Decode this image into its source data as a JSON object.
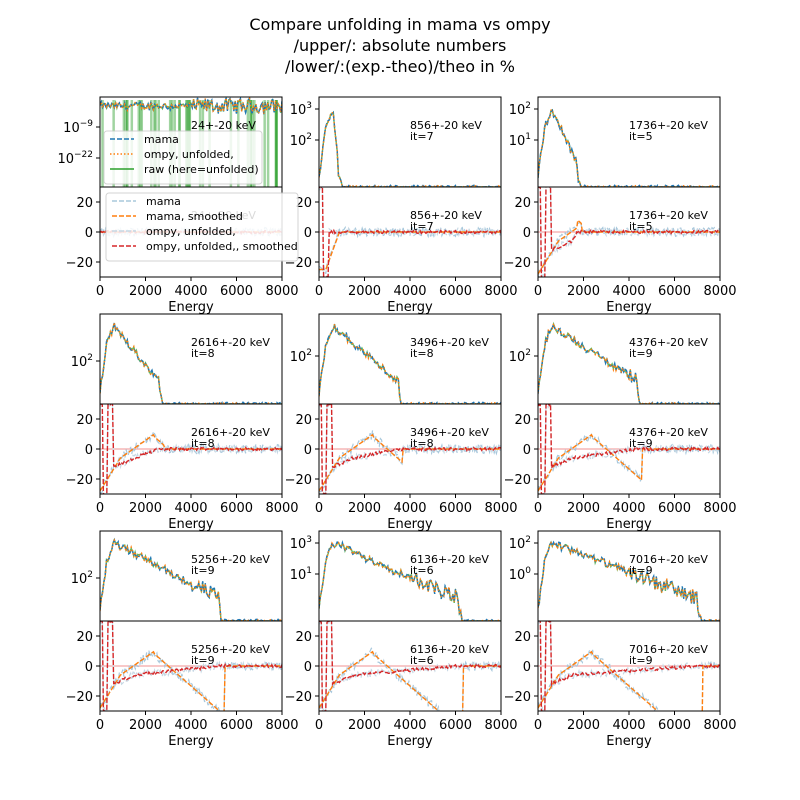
{
  "chart_data": {
    "type": "line",
    "title": [
      "Compare unfolding in mama vs ompy",
      "/upper/: absolute numbers",
      "/lower/:(exp.-theo)/theo in %"
    ],
    "xlabel": "Energy",
    "xlim": [
      0,
      8000
    ],
    "xticks": [
      0,
      2000,
      4000,
      6000,
      8000
    ],
    "lower_ylim": [
      -30,
      30
    ],
    "lower_yticks": [
      -20,
      0,
      20
    ],
    "upper_legend": {
      "position": "lower-left",
      "entries": [
        {
          "label": "mama",
          "color": "#1f77b4",
          "dash": "dashed"
        },
        {
          "label": "ompy, unfolded,",
          "color": "#ff7f0e",
          "dash": "dotted"
        },
        {
          "label": "raw (here=unfolded)",
          "color": "#2ca02c",
          "dash": "solid"
        }
      ]
    },
    "lower_legend": {
      "position": "upper-left",
      "entries": [
        {
          "label": "mama",
          "color": "#a8c8dc",
          "dash": "dashed"
        },
        {
          "label": "mama, smoothed",
          "color": "#ff7f0e",
          "dash": "dashed"
        },
        {
          "label": "ompy, unfolded,",
          "color": "#c6d8e4",
          "dash": "dashed"
        },
        {
          "label": "ompy, unfolded,, smoothed",
          "color": "#d62728",
          "dash": "dashed"
        }
      ]
    },
    "panels": [
      {
        "energy": 24,
        "label": "24+-20 keV",
        "it": "",
        "yticks": [
          {
            "base": "10",
            "exp": "−9"
          },
          {
            "base": "10",
            "exp": "−22"
          }
        ]
      },
      {
        "energy": 856,
        "label": "856+-20 keV",
        "it": "it=7",
        "yticks": [
          {
            "base": "10",
            "exp": "3"
          },
          {
            "base": "10",
            "exp": "2"
          }
        ]
      },
      {
        "energy": 1736,
        "label": "1736+-20 keV",
        "it": "it=5",
        "yticks": [
          {
            "base": "10",
            "exp": "2"
          },
          {
            "base": "10",
            "exp": "1"
          }
        ]
      },
      {
        "energy": 2616,
        "label": "2616+-20 keV",
        "it": "it=8",
        "yticks": [
          {
            "base": "10",
            "exp": "2"
          }
        ]
      },
      {
        "energy": 3496,
        "label": "3496+-20 keV",
        "it": "it=8",
        "yticks": [
          {
            "base": "10",
            "exp": "2"
          }
        ]
      },
      {
        "energy": 4376,
        "label": "4376+-20 keV",
        "it": "it=9",
        "yticks": [
          {
            "base": "10",
            "exp": "2"
          }
        ]
      },
      {
        "energy": 5256,
        "label": "5256+-20 keV",
        "it": "it=9",
        "yticks": [
          {
            "base": "10",
            "exp": "2"
          }
        ]
      },
      {
        "energy": 6136,
        "label": "6136+-20 keV",
        "it": "it=6",
        "yticks": [
          {
            "base": "10",
            "exp": "3"
          },
          {
            "base": "10",
            "exp": "1"
          }
        ]
      },
      {
        "energy": 7016,
        "label": "7016+-20 keV",
        "it": "it=9",
        "yticks": [
          {
            "base": "10",
            "exp": "2"
          },
          {
            "base": "10",
            "exp": "0"
          }
        ]
      }
    ],
    "colors": {
      "mama": "#1f77b4",
      "ompy": "#ff7f0e",
      "raw": "#2ca02c",
      "smoothed": "#d62728",
      "light": "#a8c8dc",
      "zero": "#f4a6a6"
    }
  }
}
